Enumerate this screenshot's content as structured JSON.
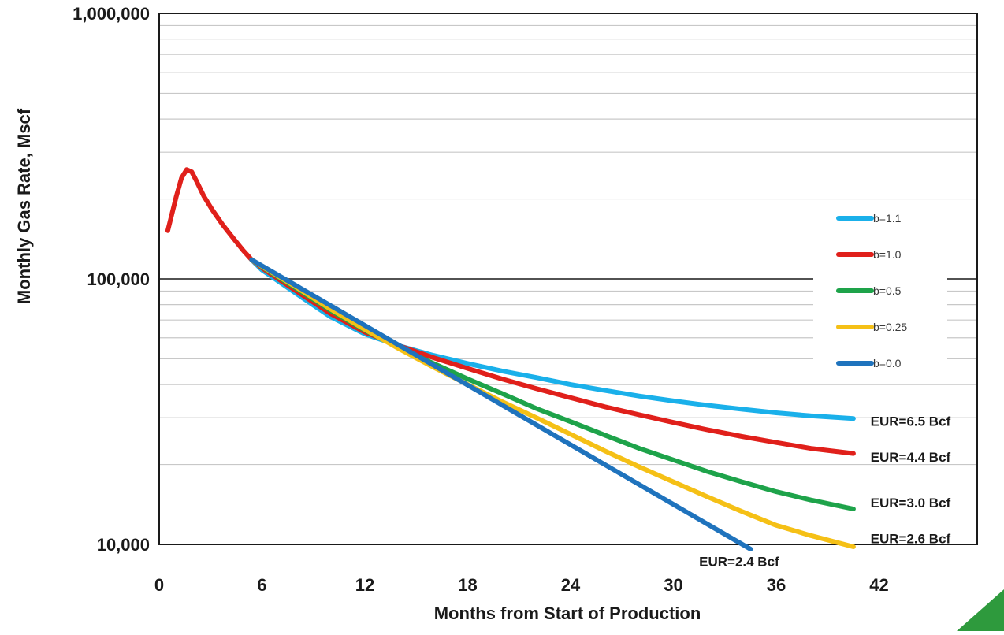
{
  "chart_data": {
    "type": "line",
    "xlabel": "Months from Start of Production",
    "ylabel": "Monthly Gas Rate, Mscf",
    "xlim": [
      0,
      48
    ],
    "ylim": [
      10000,
      1000000
    ],
    "y_scale": "log",
    "grid": true,
    "legend_position": "right",
    "x_ticks": [
      0,
      6,
      12,
      18,
      24,
      30,
      36,
      42
    ],
    "x_tick_labels": [
      "0",
      "6",
      "12",
      "18",
      "24",
      "30",
      "36",
      "42"
    ],
    "y_ticks": [
      10000,
      100000,
      1000000
    ],
    "y_tick_labels": [
      "10,000",
      "100,000",
      "1,000,000"
    ],
    "early_series": {
      "color": "#e0201b",
      "points": [
        [
          0.5,
          152000
        ],
        [
          1.0,
          205000
        ],
        [
          1.3,
          240000
        ],
        [
          1.6,
          258000
        ],
        [
          1.9,
          253000
        ],
        [
          2.2,
          232000
        ],
        [
          2.6,
          205000
        ],
        [
          3.1,
          182000
        ],
        [
          3.7,
          160000
        ],
        [
          4.3,
          143000
        ],
        [
          4.9,
          128000
        ],
        [
          5.4,
          118000
        ]
      ]
    },
    "series": [
      {
        "name": "b=1.1",
        "color": "#1ab0ea",
        "points": [
          [
            5.4,
            118000
          ],
          [
            6,
            108000
          ],
          [
            8,
            88000
          ],
          [
            10,
            72000
          ],
          [
            12,
            62000
          ],
          [
            14,
            56000
          ],
          [
            16,
            51500
          ],
          [
            18,
            48000
          ],
          [
            20,
            45000
          ],
          [
            22,
            42500
          ],
          [
            24,
            40000
          ],
          [
            26,
            38000
          ],
          [
            28,
            36200
          ],
          [
            30,
            34700
          ],
          [
            32,
            33400
          ],
          [
            34,
            32300
          ],
          [
            36,
            31300
          ],
          [
            38,
            30500
          ],
          [
            40.5,
            29800
          ]
        ]
      },
      {
        "name": "b=1.0",
        "color": "#e0201b",
        "points": [
          [
            5.4,
            118000
          ],
          [
            6,
            110000
          ],
          [
            8,
            90000
          ],
          [
            10,
            74000
          ],
          [
            12,
            63000
          ],
          [
            14,
            56000
          ],
          [
            16,
            50500
          ],
          [
            18,
            46000
          ],
          [
            20,
            42000
          ],
          [
            22,
            38600
          ],
          [
            24,
            35700
          ],
          [
            26,
            33000
          ],
          [
            28,
            30800
          ],
          [
            30,
            28800
          ],
          [
            32,
            27000
          ],
          [
            34,
            25500
          ],
          [
            36,
            24200
          ],
          [
            38,
            23000
          ],
          [
            40.5,
            22000
          ]
        ]
      },
      {
        "name": "b=0.5",
        "color": "#1ea34a",
        "points": [
          [
            5.4,
            118000
          ],
          [
            6,
            111000
          ],
          [
            8,
            92000
          ],
          [
            10,
            76000
          ],
          [
            12,
            64000
          ],
          [
            14,
            55000
          ],
          [
            16,
            48000
          ],
          [
            18,
            42000
          ],
          [
            20,
            37000
          ],
          [
            22,
            32500
          ],
          [
            24,
            29000
          ],
          [
            26,
            25800
          ],
          [
            28,
            23000
          ],
          [
            30,
            20800
          ],
          [
            32,
            18800
          ],
          [
            34,
            17200
          ],
          [
            36,
            15800
          ],
          [
            38,
            14700
          ],
          [
            40.5,
            13600
          ]
        ]
      },
      {
        "name": "b=0.25",
        "color": "#f5c016",
        "points": [
          [
            5.4,
            118000
          ],
          [
            6,
            111500
          ],
          [
            8,
            93000
          ],
          [
            10,
            77000
          ],
          [
            12,
            64500
          ],
          [
            14,
            54500
          ],
          [
            16,
            46500
          ],
          [
            18,
            40000
          ],
          [
            20,
            34500
          ],
          [
            22,
            30000
          ],
          [
            24,
            26000
          ],
          [
            26,
            22500
          ],
          [
            28,
            19600
          ],
          [
            30,
            17200
          ],
          [
            32,
            15100
          ],
          [
            34,
            13300
          ],
          [
            36,
            11800
          ],
          [
            38,
            10800
          ],
          [
            40.5,
            9800
          ]
        ]
      },
      {
        "name": "b=0.0",
        "color": "#1f73bd",
        "points": [
          [
            5.4,
            118000
          ],
          [
            34.5,
            9600
          ]
        ]
      }
    ],
    "legend_entries": [
      "b=1.1",
      "b=1.0",
      "b=0.5",
      "b=0.25",
      "b=0.0"
    ],
    "annotations": [
      {
        "text": "EUR=6.5 Bcf",
        "x": 41.5,
        "y": 28000
      },
      {
        "text": "EUR=4.4 Bcf",
        "x": 41.5,
        "y": 20500
      },
      {
        "text": "EUR=3.0 Bcf",
        "x": 41.5,
        "y": 13800
      },
      {
        "text": "EUR=2.6 Bcf",
        "x": 41.5,
        "y": 10100
      },
      {
        "text": "EUR=2.4 Bcf",
        "x": 31.5,
        "y": 8300
      }
    ]
  }
}
